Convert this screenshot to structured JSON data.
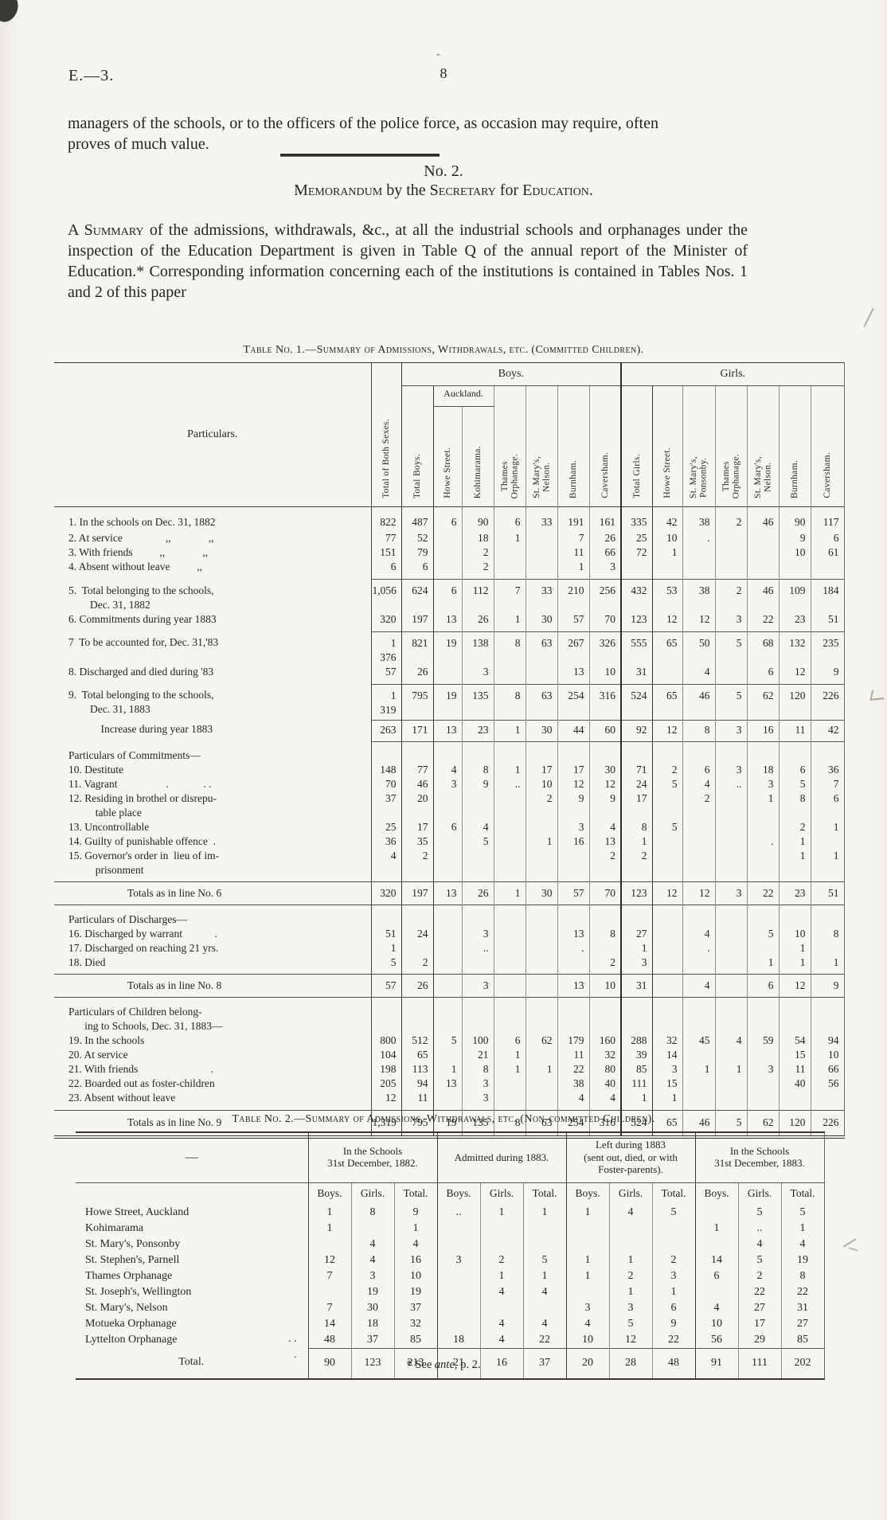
{
  "colors": {
    "paper": "#f6f5f0",
    "ink": "#26241f"
  },
  "page": {
    "doc_ref": "E.—3.",
    "page_number": "8",
    "para1": "managers of the schools, or to the officers of the police force, as occasion may require, often proves of much value.",
    "section_no": "No. 2.",
    "heading": {
      "w1": "Memorandum",
      "m1": " by the ",
      "w2": "Secretary",
      "m2": " for ",
      "w3": "Education."
    },
    "para2_lead": "A Summary",
    "para2_rest": " of the admissions, withdrawals, &c., at all the industrial schools and orphanages under the inspection of the Education Department is given in Table Q of the annual report of the Minister of Education.*  Corresponding information concerning each of the institutions is contained in Tables Nos. 1 and 2 of this paper",
    "footnote": {
      "pre": "* See ",
      "em": "ante",
      "post": ", p. 2."
    }
  },
  "table1": {
    "title": "Table No. 1.—Summary of Admissions, Withdrawals, etc. (Committed Children).",
    "particulars_label": "Particulars.",
    "col_total_both": "Total of Both Sexes.",
    "boys_label": "Boys.",
    "girls_label": "Girls.",
    "auckland_label": "Auckland.",
    "boys_cols": [
      "Total Boys.",
      "Howe Street.",
      "Kohimarama.",
      "Thames\nOrphanage.",
      "St. Mary's,\nNelson.",
      "Burnham.",
      "Caversham."
    ],
    "girls_cols": [
      "Total Girls.",
      "Howe Street.",
      "St. Mary's,\nPonsonby.",
      "Thames\nOrphanage.",
      "St. Mary's,\nNelson.",
      "Burnham.",
      "Caversham."
    ],
    "rows": [
      {
        "c": "data",
        "g": 10,
        "gb": 2,
        "l": "1. In the schools on Dec. 31, 1882",
        "v": [
          "822",
          "487",
          "6",
          "90",
          "6",
          "33",
          "191",
          "161",
          "335",
          "42",
          "38",
          "2",
          "46",
          "90",
          "117"
        ]
      },
      {
        "c": "data",
        "l": "2. At service                ,,              ,,",
        "v": [
          "77",
          "52",
          "",
          "18",
          "1",
          "",
          "7",
          "26",
          "25",
          "10",
          ".",
          "",
          "",
          "9",
          "6"
        ]
      },
      {
        "c": "data",
        "l": "3. With friends          ,,              ,,",
        "v": [
          "151",
          "79",
          "",
          "2",
          "",
          "",
          "11",
          "66",
          "72",
          "1",
          "",
          "",
          "",
          "10",
          "61"
        ]
      },
      {
        "c": "data",
        "gb": 6,
        "l": "4. Absent without leave          ,,",
        "v": [
          "6",
          "6",
          "",
          "2",
          "",
          "",
          "1",
          "3",
          "",
          "",
          "",
          "",
          "",
          "",
          ""
        ]
      },
      {
        "c": "data",
        "rtn": 1,
        "g": 5,
        "l": "5.  Total belonging to the schools,\n        Dec. 31, 1882",
        "v": [
          "1,056",
          "624",
          "6",
          "112",
          "7",
          "33",
          "210",
          "256",
          "432",
          "53",
          "38",
          "2",
          "46",
          "109",
          "184"
        ]
      },
      {
        "c": "data",
        "gb": 6,
        "l": "6. Commitments during year 1883",
        "v": [
          "320",
          "197",
          "13",
          "26",
          "1",
          "30",
          "57",
          "70",
          "123",
          "12",
          "12",
          "3",
          "22",
          "23",
          "51"
        ]
      },
      {
        "c": "data",
        "rtn": 1,
        "g": 5,
        "l": "7  To be accounted for, Dec. 31,'83",
        "v": [
          "1 376",
          "821",
          "19",
          "138",
          "8",
          "63",
          "267",
          "326",
          "555",
          "65",
          "50",
          "5",
          "68",
          "132",
          "235"
        ]
      },
      {
        "c": "data",
        "gb": 6,
        "l": "8. Discharged and died during '83",
        "v": [
          "57",
          "26",
          "",
          "3",
          "",
          "",
          "13",
          "10",
          "31",
          "",
          "4",
          "",
          "6",
          "12",
          "9"
        ]
      },
      {
        "c": "data",
        "rtn": 1,
        "g": 5,
        "gb": 3,
        "l": "9.  Total belonging to the schools,\n        Dec. 31, 1883",
        "v": [
          "1 319",
          "795",
          "19",
          "135",
          "8",
          "63",
          "254",
          "316",
          "524",
          "65",
          "46",
          "5",
          "62",
          "120",
          "226"
        ]
      },
      {
        "c": "data",
        "rtn": 1,
        "g": 3,
        "gb": 5,
        "l": "            Increase during year 1883",
        "v": [
          "263",
          "171",
          "13",
          "23",
          "1",
          "30",
          "44",
          "60",
          "92",
          "12",
          "8",
          "3",
          "16",
          "11",
          "42"
        ]
      },
      {
        "c": "section",
        "rtn": 1,
        "g": 9,
        "l": "Particulars of Commitments—"
      },
      {
        "c": "data",
        "l": "10. Destitute",
        "v": [
          "148",
          "77",
          "4",
          "8",
          "1",
          "17",
          "17",
          "30",
          "71",
          "2",
          "6",
          "3",
          "18",
          "6",
          "36"
        ]
      },
      {
        "c": "data",
        "l": "11. Vagrant                  .             . .",
        "v": [
          "70",
          "46",
          "3",
          "9",
          "..",
          "10",
          "12",
          "12",
          "24",
          "5",
          "4",
          "..",
          "3",
          "5",
          "7"
        ]
      },
      {
        "c": "data",
        "l": "12. Residing in brothel or disrepu-\n          table place",
        "v": [
          "37",
          "20",
          "",
          "",
          "",
          "2",
          "9",
          "9",
          "17",
          "",
          "2",
          "",
          "1",
          "8",
          "6"
        ]
      },
      {
        "c": "data",
        "l": "13. Uncontrollable",
        "v": [
          "25",
          "17",
          "6",
          "4",
          "",
          "",
          "3",
          "4",
          "8",
          "5",
          "",
          "",
          "",
          "2",
          "1"
        ]
      },
      {
        "c": "data",
        "l": "14. Guilty of punishable offence  .",
        "v": [
          "36",
          "35",
          "",
          "5",
          "",
          "1",
          "16",
          "13",
          "1",
          "",
          "",
          "",
          ".",
          "1",
          ""
        ]
      },
      {
        "c": "data",
        "gb": 5,
        "l": "15. Governor's order in  lieu of im-\n          prisonment",
        "v": [
          "4",
          "2",
          "",
          "",
          "",
          "",
          "",
          "2",
          "2",
          "",
          "",
          "",
          "",
          "1",
          "1"
        ]
      },
      {
        "c": "total",
        "rtf": 1,
        "g": 5,
        "gb": 5,
        "l": "Totals as in line No. 6",
        "v": [
          "320",
          "197",
          "13",
          "26",
          "1",
          "30",
          "57",
          "70",
          "123",
          "12",
          "12",
          "3",
          "22",
          "23",
          "51"
        ]
      },
      {
        "c": "section",
        "rtf": 1,
        "g": 9,
        "l": "Particulars of Discharges—"
      },
      {
        "c": "data",
        "l": "16. Discharged by warrant            .",
        "v": [
          "51",
          "24",
          "",
          "3",
          "",
          "",
          "13",
          "8",
          "27",
          "",
          "4",
          "",
          "5",
          "10",
          "8"
        ]
      },
      {
        "c": "data",
        "l": "17. Discharged on reaching 21 yrs.",
        "v": [
          "1",
          "",
          "",
          "..",
          "",
          "",
          ".",
          "",
          "1",
          "",
          ".",
          "",
          "",
          "1",
          ""
        ]
      },
      {
        "c": "data",
        "gb": 5,
        "l": "18. Died",
        "v": [
          "5",
          "2",
          "",
          "",
          "",
          "",
          "",
          "2",
          "3",
          "",
          "",
          "",
          "1",
          "1",
          "1"
        ]
      },
      {
        "c": "total",
        "rtf": 1,
        "g": 5,
        "gb": 5,
        "l": "Totals as in line No. 8",
        "v": [
          "57",
          "26",
          "",
          "3",
          "",
          "",
          "13",
          "10",
          "31",
          "",
          "4",
          "",
          "6",
          "12",
          "9"
        ]
      },
      {
        "c": "section",
        "rtf": 1,
        "g": 9,
        "l": "Particulars of Children belong-\n      ing to Schools, Dec. 31, 1883—"
      },
      {
        "c": "data",
        "l": "19. In the schools",
        "v": [
          "800",
          "512",
          "5",
          "100",
          "6",
          "62",
          "179",
          "160",
          "288",
          "32",
          "45",
          "4",
          "59",
          "54",
          "94"
        ]
      },
      {
        "c": "data",
        "l": "20. At service",
        "v": [
          "104",
          "65",
          "",
          "21",
          "1",
          "",
          "11",
          "32",
          "39",
          "14",
          "",
          "",
          "",
          "15",
          "10"
        ]
      },
      {
        "c": "data",
        "l": "21. With friends                           .",
        "v": [
          "198",
          "113",
          "1",
          "8",
          "1",
          "1",
          "22",
          "80",
          "85",
          "3",
          "1",
          "1",
          "3",
          "11",
          "66"
        ]
      },
      {
        "c": "data",
        "l": "22. Boarded out as foster-children",
        "v": [
          "205",
          "94",
          "13",
          "3",
          "",
          "",
          "38",
          "40",
          "111",
          "15",
          "",
          "",
          "",
          "40",
          "56"
        ]
      },
      {
        "c": "data",
        "gb": 6,
        "l": "23. Absent without leave",
        "v": [
          "12",
          "11",
          "",
          "3",
          "",
          "",
          "4",
          "4",
          "1",
          "1",
          "",
          "",
          "",
          "",
          ""
        ]
      },
      {
        "c": "total",
        "rtf": 1,
        "g": 6,
        "gb": 7,
        "l": "Totals as in line No. 9",
        "v": [
          "1,319",
          "795",
          "19",
          "135",
          "8",
          "63",
          "254",
          "316",
          "524",
          "65",
          "46",
          "5",
          "62",
          "120",
          "226"
        ]
      }
    ]
  },
  "table2": {
    "title": "Table No. 2.—Summary of Admissions, Withdrawals, etc. (Non-committed Children).",
    "first_col_header": "—",
    "groups": [
      "In the Schools\n31st December, 1882.",
      "Admitted during 1883.",
      "Left during 1883\n(sent out, died, or with\nFoster-parents).",
      "In the Schools\n31st December, 1883."
    ],
    "sub_cols": [
      "Boys.",
      "Girls.",
      "Total."
    ],
    "rows": [
      {
        "c": "data",
        "l": "Howe Street, Auckland",
        "v": [
          "1",
          "8",
          "9",
          "..",
          "1",
          "1",
          "1",
          "4",
          "5",
          "",
          "5",
          "5"
        ]
      },
      {
        "c": "data",
        "l": "Kohimarama",
        "v": [
          "1",
          "",
          "1",
          "",
          "",
          "",
          "",
          "",
          "",
          "1",
          "..",
          "1"
        ]
      },
      {
        "c": "data",
        "l": "St. Mary's, Ponsonby",
        "v": [
          "",
          "4",
          "4",
          "",
          "",
          "",
          "",
          "",
          "",
          "",
          "4",
          "4"
        ]
      },
      {
        "c": "data",
        "l": "St. Stephen's, Parnell",
        "v": [
          "12",
          "4",
          "16",
          "3",
          "2",
          "5",
          "1",
          "1",
          "2",
          "14",
          "5",
          "19"
        ]
      },
      {
        "c": "data",
        "l": "Thames Orphanage",
        "v": [
          "7",
          "3",
          "10",
          "",
          "1",
          "1",
          "1",
          "2",
          "3",
          "6",
          "2",
          "8"
        ]
      },
      {
        "c": "data",
        "l": "St. Joseph's, Wellington",
        "v": [
          "",
          "19",
          "19",
          "",
          "4",
          "4",
          "",
          "1",
          "1",
          "",
          "22",
          "22"
        ]
      },
      {
        "c": "data",
        "l": "St. Mary's, Nelson",
        "v": [
          "7",
          "30",
          "37",
          "",
          "",
          "",
          "3",
          "3",
          "6",
          "4",
          "27",
          "31"
        ]
      },
      {
        "c": "data",
        "l": "Motueka Orphanage",
        "v": [
          "14",
          "18",
          "32",
          "",
          "4",
          "4",
          "4",
          "5",
          "9",
          "10",
          "17",
          "27"
        ]
      },
      {
        "c": "data",
        "leader": ". .",
        "l": "Lyttelton Orphanage",
        "v": [
          "48",
          "37",
          "85",
          "18",
          "4",
          "22",
          "10",
          "12",
          "22",
          "56",
          "29",
          "85"
        ]
      },
      {
        "c": "total",
        "leader": ".",
        "l": "Total.",
        "v": [
          "90",
          "123",
          "213",
          "21",
          "16",
          "37",
          "20",
          "28",
          "48",
          "91",
          "111",
          "202"
        ]
      }
    ]
  }
}
